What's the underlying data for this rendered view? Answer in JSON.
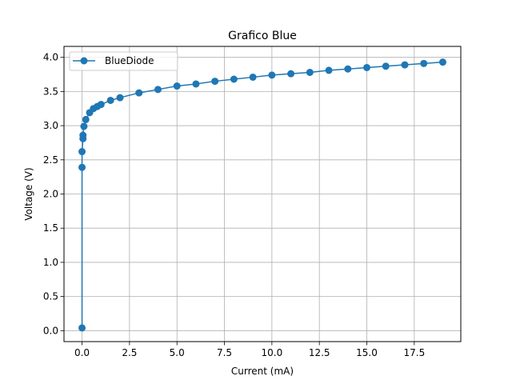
{
  "chart_data": {
    "type": "line",
    "title": "Grafico Blue",
    "xlabel": "Current (mA)",
    "ylabel": "Voltage (V)",
    "xlim": [
      -0.95,
      19.95
    ],
    "ylim": [
      -0.16,
      4.16
    ],
    "xticks": [
      0,
      2.5,
      5,
      7.5,
      10,
      12.5,
      15,
      17.5
    ],
    "xtick_labels": [
      "0.0",
      "2.5",
      "5.0",
      "7.5",
      "10.0",
      "12.5",
      "15.0",
      "17.5"
    ],
    "yticks": [
      0,
      0.5,
      1,
      1.5,
      2,
      2.5,
      3,
      3.5,
      4
    ],
    "ytick_labels": [
      "0.0",
      "0.5",
      "1.0",
      "1.5",
      "2.0",
      "2.5",
      "3.0",
      "3.5",
      "4.0"
    ],
    "grid": true,
    "legend": "upper-left",
    "series": [
      {
        "name": "BlueDiode",
        "color": "#1f77b4",
        "marker": "circle",
        "x": [
          0,
          0,
          0,
          0.05,
          0.05,
          0.1,
          0.2,
          0.4,
          0.6,
          0.8,
          1.0,
          1.5,
          2,
          3,
          4,
          5,
          6,
          7,
          8,
          9,
          10,
          11,
          12,
          13,
          14,
          15,
          16,
          17,
          18,
          19
        ],
        "y": [
          0.04,
          2.39,
          2.62,
          2.81,
          2.86,
          2.99,
          3.09,
          3.19,
          3.25,
          3.28,
          3.31,
          3.37,
          3.41,
          3.48,
          3.53,
          3.58,
          3.61,
          3.65,
          3.68,
          3.71,
          3.74,
          3.76,
          3.78,
          3.81,
          3.83,
          3.85,
          3.87,
          3.89,
          3.91,
          3.93
        ]
      }
    ]
  }
}
